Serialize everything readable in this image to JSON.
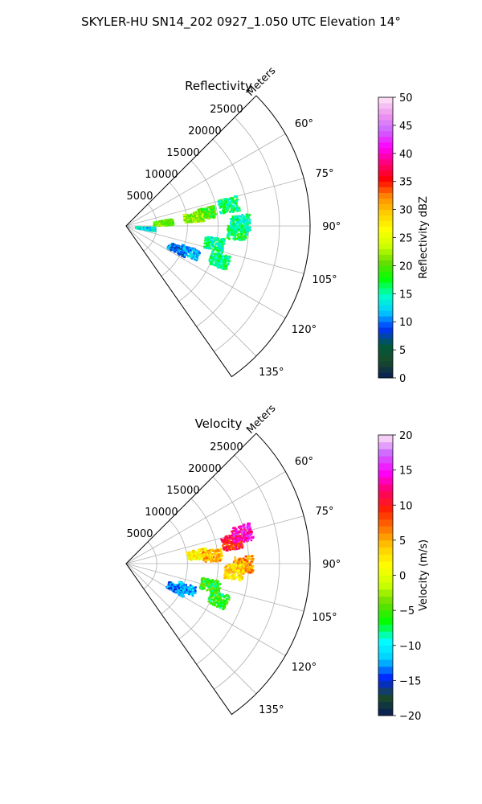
{
  "figure": {
    "suptitle": "SKYLER-HU  SN14_202  0927_1.050 UTC Elevation 14°"
  },
  "chart_data": [
    {
      "type": "heatmap",
      "title": "Reflectivity",
      "projection": "polar-sector",
      "theta_unit": "degrees",
      "theta_range": [
        45,
        145
      ],
      "theta_ticks": [
        60,
        75,
        90,
        105,
        120,
        135
      ],
      "theta_tick_labels": [
        "60°",
        "75°",
        "90°",
        "105°",
        "120°",
        "135°"
      ],
      "r_label": "Meters",
      "r_range": [
        0,
        30000
      ],
      "r_ticks": [
        5000,
        10000,
        15000,
        20000,
        25000
      ],
      "r_tick_labels": [
        "5000",
        "10000",
        "15000",
        "20000",
        "25000"
      ],
      "grid": true,
      "colorbar": {
        "label": "Reflectivity dBZ",
        "range": [
          0,
          50
        ],
        "ticks": [
          0,
          5,
          10,
          15,
          20,
          25,
          30,
          35,
          40,
          45,
          50
        ],
        "tick_labels": [
          "0",
          "5",
          "10",
          "15",
          "20",
          "25",
          "30",
          "35",
          "40",
          "45",
          "50"
        ],
        "levels": 50
      },
      "echo_regions": [
        {
          "az": 78,
          "r": 17000,
          "value": 16
        },
        {
          "az": 80,
          "r": 13000,
          "value": 19
        },
        {
          "az": 82,
          "r": 11000,
          "value": 22
        },
        {
          "az": 93,
          "r": 18000,
          "value": 17
        },
        {
          "az": 88,
          "r": 18500,
          "value": 15
        },
        {
          "az": 101,
          "r": 14500,
          "value": 15
        },
        {
          "az": 112,
          "r": 11000,
          "value": 12
        },
        {
          "az": 114,
          "r": 9000,
          "value": 10
        },
        {
          "az": 110,
          "r": 16000,
          "value": 16
        },
        {
          "az": 84,
          "r": 6000,
          "value": 20
        },
        {
          "az": 95,
          "r": 3000,
          "value": 13
        }
      ]
    },
    {
      "type": "heatmap",
      "title": "Velocity",
      "projection": "polar-sector",
      "theta_unit": "degrees",
      "theta_range": [
        45,
        145
      ],
      "theta_ticks": [
        60,
        75,
        90,
        105,
        120,
        135
      ],
      "theta_tick_labels": [
        "60°",
        "75°",
        "90°",
        "105°",
        "120°",
        "135°"
      ],
      "r_label": "Meters",
      "r_range": [
        0,
        30000
      ],
      "r_ticks": [
        5000,
        10000,
        15000,
        20000,
        25000
      ],
      "r_tick_labels": [
        "5000",
        "10000",
        "15000",
        "20000",
        "25000"
      ],
      "grid": true,
      "colorbar": {
        "label": "Velocity (m/s)",
        "range": [
          -20,
          20
        ],
        "ticks": [
          -20,
          -15,
          -10,
          -5,
          0,
          5,
          10,
          15,
          20
        ],
        "tick_labels": [
          "−20",
          "−15",
          "−10",
          "−5",
          "0",
          "5",
          "10",
          "15",
          "20"
        ],
        "levels": 40
      },
      "echo_regions": [
        {
          "az": 78,
          "r": 17500,
          "value": 10
        },
        {
          "az": 75,
          "r": 19500,
          "value": 14
        },
        {
          "az": 82,
          "r": 11500,
          "value": 2
        },
        {
          "az": 84,
          "r": 14000,
          "value": 5
        },
        {
          "az": 90,
          "r": 19000,
          "value": 6
        },
        {
          "az": 94,
          "r": 17500,
          "value": 3
        },
        {
          "az": 104,
          "r": 14000,
          "value": -6
        },
        {
          "az": 112,
          "r": 10500,
          "value": -12
        },
        {
          "az": 116,
          "r": 9000,
          "value": -13
        },
        {
          "az": 111,
          "r": 16000,
          "value": -6
        }
      ]
    }
  ],
  "colors": {
    "reflectivity_scale": [
      "#081d58",
      "#1a4a2a",
      "#005a3c",
      "#0033ff",
      "#00ccff",
      "#00ffc8",
      "#00ff00",
      "#66dd00",
      "#ccff00",
      "#ffff00",
      "#ffcc00",
      "#ff8800",
      "#ff0000",
      "#ff0077",
      "#ff00ff",
      "#cc66ff",
      "#ee99ee",
      "#ffe6f5"
    ],
    "velocity_scale": [
      "#081d58",
      "#1a4a2a",
      "#0022ff",
      "#00ccff",
      "#00ffff",
      "#00ff00",
      "#66dd00",
      "#ccff00",
      "#ffff00",
      "#ffcc00",
      "#ff7700",
      "#ff2200",
      "#ff0066",
      "#ff00ff",
      "#cc66ff",
      "#ffe6f5"
    ]
  }
}
